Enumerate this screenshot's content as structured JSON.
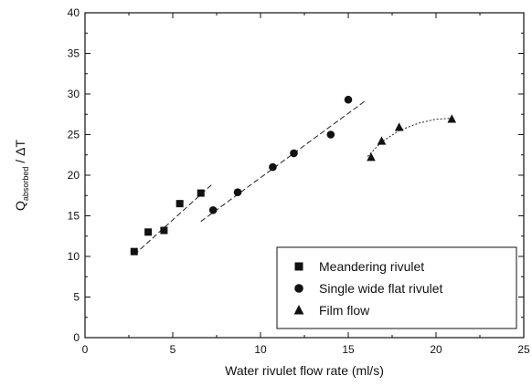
{
  "chart_data": {
    "type": "scatter",
    "xlabel": "Water rivulet flow rate (ml/s)",
    "ylabel": {
      "main": "Q",
      "sub": "absorbed",
      "rest": " / ΔT"
    },
    "xlim": [
      0,
      25
    ],
    "ylim": [
      0,
      40
    ],
    "xticks": [
      0,
      5,
      10,
      15,
      20,
      25
    ],
    "yticks": [
      0,
      5,
      10,
      15,
      20,
      25,
      30,
      35,
      40
    ],
    "grid": false,
    "legend_position": "bottom-right",
    "series": [
      {
        "name": "Meandering rivulet",
        "marker": "square",
        "points": [
          [
            2.8,
            10.6
          ],
          [
            3.6,
            13.0
          ],
          [
            4.5,
            13.2
          ],
          [
            5.4,
            16.5
          ],
          [
            6.6,
            17.8
          ]
        ],
        "fit": {
          "kind": "linear",
          "x": [
            2.8,
            7.2
          ],
          "y": [
            10.2,
            18.8
          ],
          "style": "dashed"
        }
      },
      {
        "name": "Single wide flat rivulet",
        "marker": "circle",
        "points": [
          [
            7.3,
            15.7
          ],
          [
            8.7,
            17.9
          ],
          [
            10.7,
            21.0
          ],
          [
            11.9,
            22.7
          ],
          [
            14.0,
            25.0
          ],
          [
            15.0,
            29.3
          ]
        ],
        "fit": {
          "kind": "linear",
          "x": [
            6.6,
            16.0
          ],
          "y": [
            14.3,
            29.2
          ],
          "style": "dashed"
        }
      },
      {
        "name": "Film flow",
        "marker": "triangle",
        "points": [
          [
            16.3,
            22.2
          ],
          [
            16.9,
            24.2
          ],
          [
            17.9,
            25.9
          ],
          [
            20.9,
            26.9
          ]
        ],
        "fit": {
          "kind": "curve",
          "x": [
            16.1,
            16.9,
            17.9,
            19.0,
            20.0,
            20.8
          ],
          "y": [
            22.3,
            24.1,
            25.5,
            26.4,
            26.9,
            27.0
          ],
          "style": "dotted"
        }
      }
    ]
  }
}
